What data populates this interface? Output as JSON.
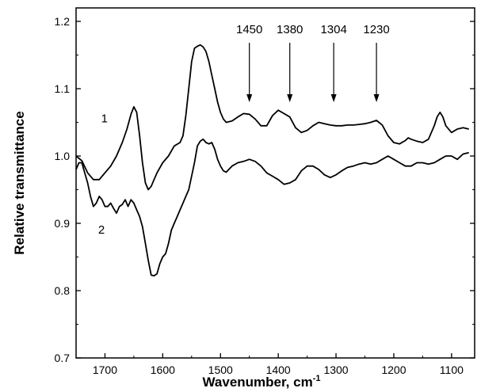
{
  "chart_data": {
    "type": "line",
    "title": "",
    "xlabel": "Wavenumber, cm",
    "xlabel_superscript": "-1",
    "ylabel": "Relative transmittance",
    "xlim": [
      1750,
      1060
    ],
    "ylim": [
      0.7,
      1.22
    ],
    "x_reversed": true,
    "grid": false,
    "xticks": [
      1700,
      1600,
      1500,
      1400,
      1300,
      1200,
      1100
    ],
    "yticks": [
      0.7,
      0.8,
      0.9,
      1.0,
      1.1,
      1.2
    ],
    "ytick_labels": [
      "0.7",
      "0.8",
      "0.9",
      "1.0",
      "1.1",
      "1.2"
    ],
    "series": [
      {
        "name": "1",
        "x": [
          1750,
          1740,
          1730,
          1720,
          1710,
          1700,
          1690,
          1680,
          1670,
          1662,
          1655,
          1650,
          1645,
          1640,
          1635,
          1630,
          1625,
          1620,
          1615,
          1610,
          1600,
          1590,
          1580,
          1570,
          1565,
          1560,
          1555,
          1550,
          1545,
          1540,
          1535,
          1530,
          1525,
          1520,
          1515,
          1510,
          1505,
          1500,
          1495,
          1490,
          1480,
          1470,
          1460,
          1450,
          1440,
          1430,
          1420,
          1410,
          1400,
          1390,
          1380,
          1370,
          1360,
          1350,
          1340,
          1330,
          1320,
          1310,
          1300,
          1290,
          1280,
          1270,
          1260,
          1250,
          1240,
          1230,
          1220,
          1210,
          1200,
          1190,
          1180,
          1175,
          1170,
          1160,
          1150,
          1140,
          1130,
          1125,
          1120,
          1115,
          1110,
          1100,
          1090,
          1080,
          1070
        ],
        "y": [
          1.0,
          0.993,
          0.975,
          0.965,
          0.965,
          0.975,
          0.985,
          1.0,
          1.02,
          1.04,
          1.062,
          1.073,
          1.065,
          1.03,
          0.99,
          0.96,
          0.95,
          0.955,
          0.965,
          0.975,
          0.99,
          1.0,
          1.015,
          1.02,
          1.03,
          1.06,
          1.1,
          1.14,
          1.16,
          1.163,
          1.165,
          1.162,
          1.155,
          1.14,
          1.12,
          1.1,
          1.08,
          1.065,
          1.055,
          1.05,
          1.052,
          1.058,
          1.063,
          1.062,
          1.055,
          1.045,
          1.045,
          1.06,
          1.068,
          1.063,
          1.058,
          1.042,
          1.035,
          1.038,
          1.045,
          1.05,
          1.048,
          1.046,
          1.045,
          1.045,
          1.046,
          1.046,
          1.047,
          1.048,
          1.05,
          1.053,
          1.046,
          1.03,
          1.02,
          1.018,
          1.023,
          1.027,
          1.025,
          1.022,
          1.02,
          1.025,
          1.045,
          1.058,
          1.065,
          1.058,
          1.045,
          1.035,
          1.04,
          1.042,
          1.04
        ]
      },
      {
        "name": "2",
        "x": [
          1750,
          1745,
          1740,
          1735,
          1730,
          1725,
          1720,
          1715,
          1710,
          1705,
          1700,
          1695,
          1690,
          1685,
          1680,
          1675,
          1670,
          1665,
          1660,
          1655,
          1650,
          1645,
          1640,
          1635,
          1630,
          1625,
          1620,
          1615,
          1610,
          1605,
          1600,
          1595,
          1590,
          1585,
          1580,
          1575,
          1570,
          1565,
          1560,
          1555,
          1550,
          1545,
          1540,
          1535,
          1530,
          1525,
          1520,
          1515,
          1510,
          1505,
          1500,
          1495,
          1490,
          1480,
          1470,
          1460,
          1450,
          1440,
          1430,
          1420,
          1410,
          1400,
          1390,
          1380,
          1370,
          1360,
          1350,
          1340,
          1330,
          1320,
          1310,
          1300,
          1290,
          1280,
          1270,
          1260,
          1250,
          1240,
          1230,
          1220,
          1210,
          1200,
          1190,
          1180,
          1170,
          1160,
          1150,
          1140,
          1130,
          1120,
          1110,
          1100,
          1090,
          1080,
          1070
        ],
        "y": [
          0.98,
          0.99,
          0.99,
          0.975,
          0.96,
          0.94,
          0.925,
          0.93,
          0.94,
          0.935,
          0.925,
          0.925,
          0.93,
          0.922,
          0.915,
          0.925,
          0.928,
          0.935,
          0.925,
          0.935,
          0.93,
          0.92,
          0.91,
          0.895,
          0.87,
          0.845,
          0.823,
          0.822,
          0.825,
          0.84,
          0.85,
          0.855,
          0.87,
          0.89,
          0.9,
          0.91,
          0.92,
          0.93,
          0.94,
          0.95,
          0.97,
          0.99,
          1.015,
          1.022,
          1.025,
          1.02,
          1.018,
          1.02,
          1.01,
          0.995,
          0.985,
          0.978,
          0.976,
          0.985,
          0.99,
          0.992,
          0.995,
          0.992,
          0.985,
          0.975,
          0.97,
          0.965,
          0.958,
          0.96,
          0.965,
          0.978,
          0.985,
          0.985,
          0.98,
          0.972,
          0.968,
          0.972,
          0.978,
          0.983,
          0.985,
          0.988,
          0.99,
          0.988,
          0.99,
          0.995,
          1.0,
          0.995,
          0.99,
          0.985,
          0.985,
          0.99,
          0.99,
          0.988,
          0.99,
          0.995,
          1.0,
          1.0,
          0.995,
          1.003,
          1.005
        ]
      }
    ],
    "annotations": [
      {
        "text": "1450",
        "x": 1450
      },
      {
        "text": "1380",
        "x": 1380
      },
      {
        "text": "1304",
        "x": 1304
      },
      {
        "text": "1230",
        "x": 1230
      }
    ],
    "series_labels": [
      {
        "text": "1",
        "series": 0
      },
      {
        "text": "2",
        "series": 1
      }
    ]
  }
}
